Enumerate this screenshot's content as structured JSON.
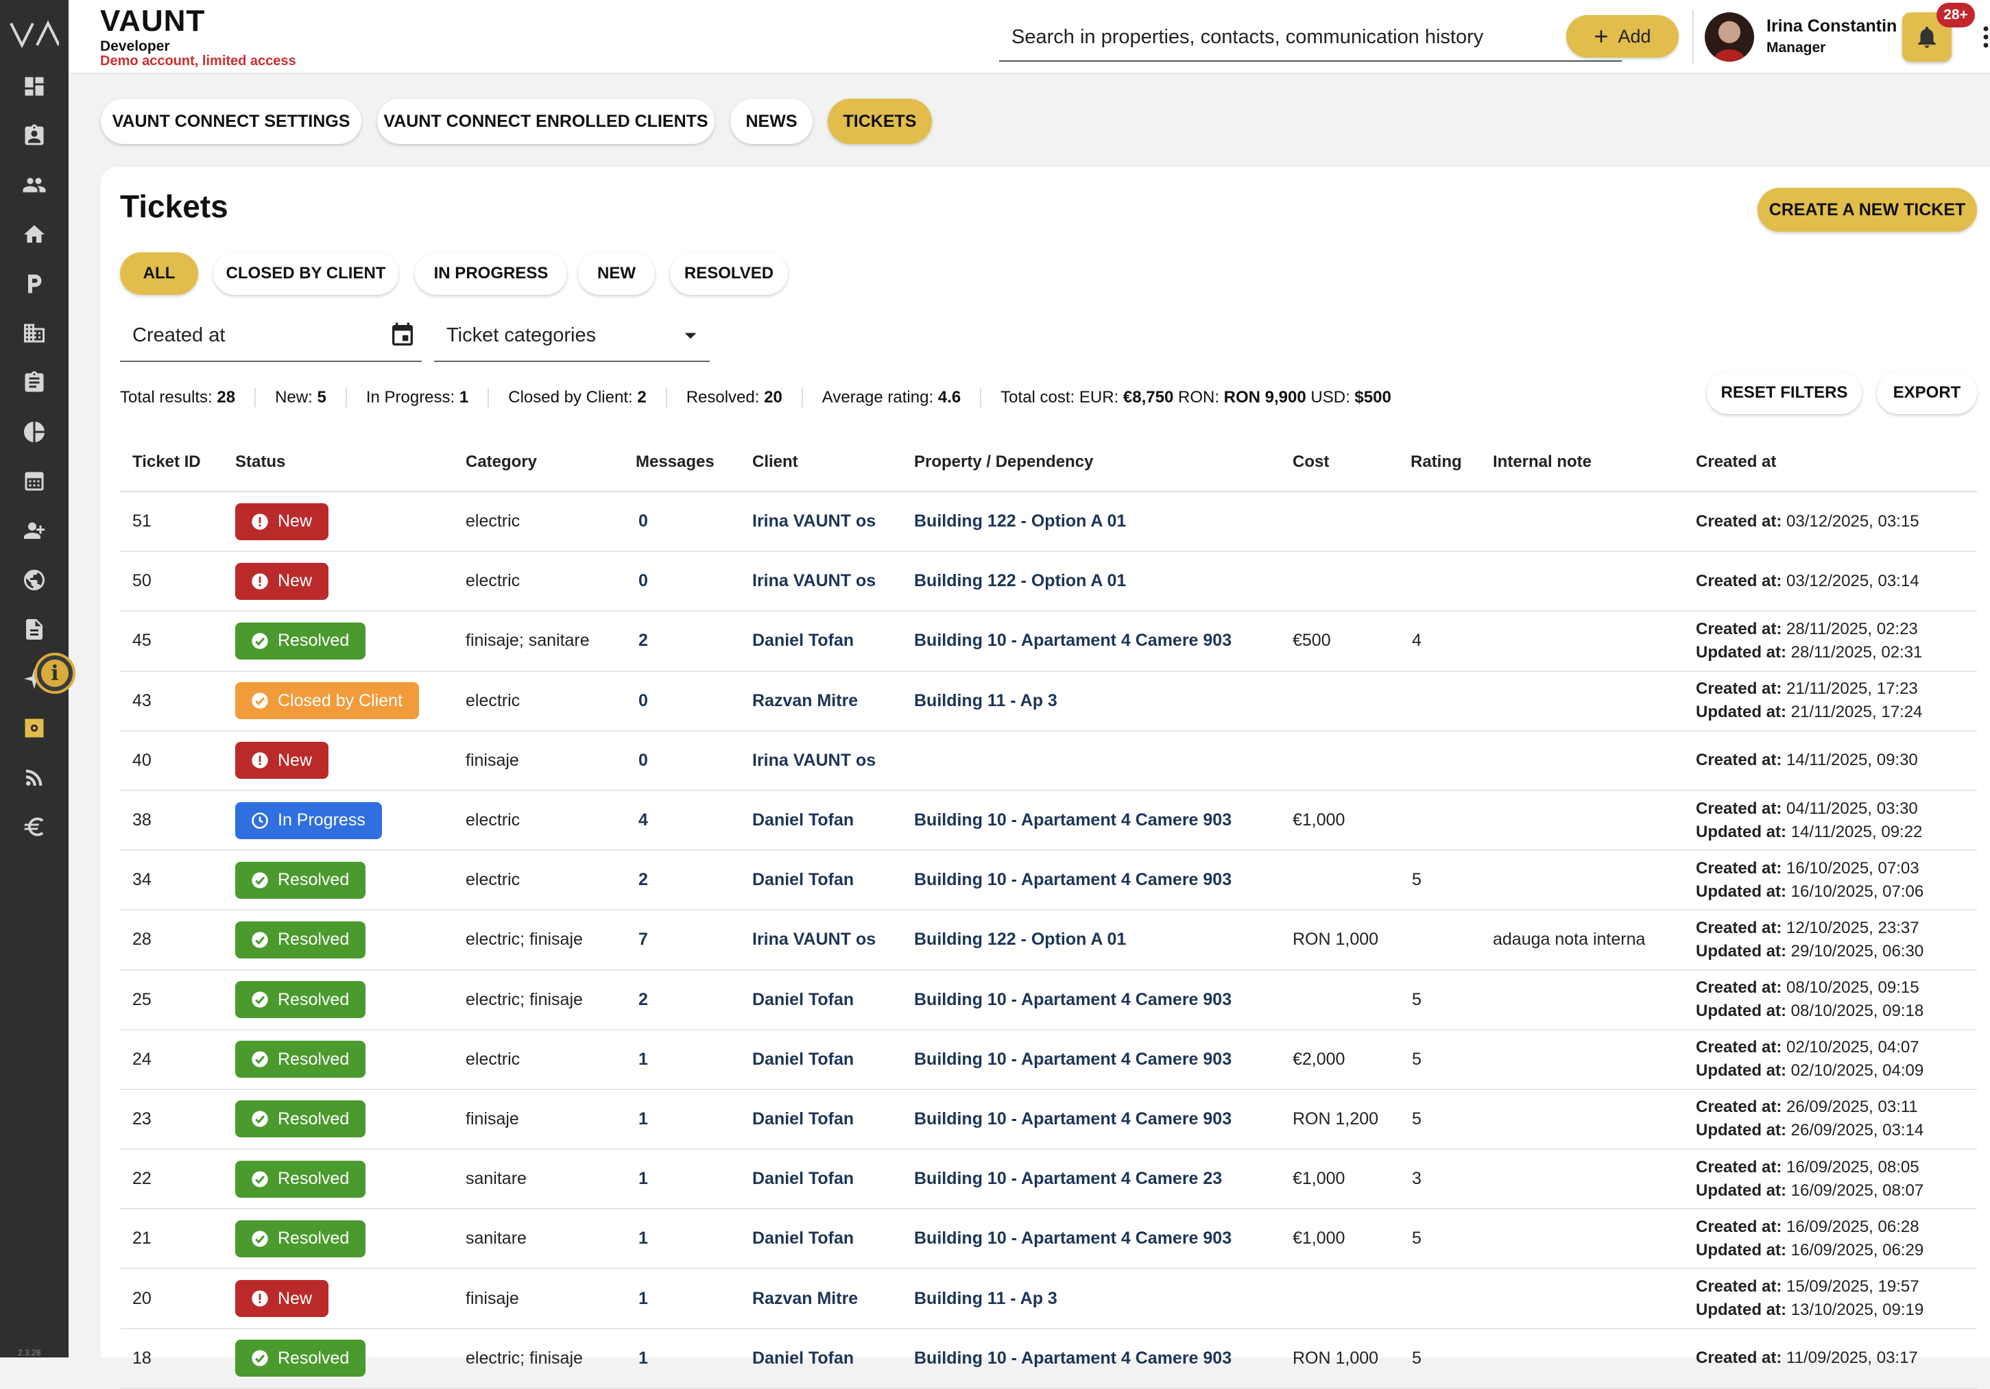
{
  "sidebar": {
    "logo": "VA",
    "items": [
      "dashboard-icon",
      "contacts-icon",
      "people-icon",
      "home-icon",
      "parking-icon",
      "building-icon",
      "clipboard-icon",
      "pie-chart-icon",
      "calculator-icon",
      "person-add-icon",
      "globe-icon",
      "document-icon",
      "sparkle-icon",
      "settings-icon",
      "feed-icon",
      "euro-icon"
    ],
    "info_badge": "i",
    "version": "2.3.28"
  },
  "header": {
    "brand": "VAUNT",
    "role_label": "Developer",
    "demo_notice": "Demo account, limited access",
    "search_placeholder": "Search in properties, contacts, communication history",
    "add_label": "Add",
    "user_name": "Irina Constantin",
    "user_role": "Manager",
    "notifications_count": "28+"
  },
  "tabs": [
    "VAUNT CONNECT SETTINGS",
    "VAUNT CONNECT ENROLLED CLIENTS",
    "NEWS",
    "TICKETS"
  ],
  "active_tab": "TICKETS",
  "page": {
    "title": "Tickets",
    "create_button": "CREATE A NEW TICKET",
    "filter_chips": [
      "ALL",
      "CLOSED BY CLIENT",
      "IN PROGRESS",
      "NEW",
      "RESOLVED"
    ],
    "active_chip": "ALL",
    "created_at_label": "Created at",
    "categories_label": "Ticket categories",
    "reset_button": "RESET FILTERS",
    "export_button": "EXPORT"
  },
  "stats": {
    "total_label": "Total results:",
    "total": "28",
    "new_label": "New:",
    "new": "5",
    "progress_label": "In Progress:",
    "progress": "1",
    "closed_label": "Closed by Client:",
    "closed": "2",
    "resolved_label": "Resolved:",
    "resolved": "20",
    "rating_label": "Average rating:",
    "rating": "4.6",
    "cost_label": "Total cost: EUR:",
    "cost_eur": "€8,750",
    "ron_label": "RON:",
    "cost_ron": "RON 9,900",
    "usd_label": "USD:",
    "cost_usd": "$500"
  },
  "columns": [
    "Ticket ID",
    "Status",
    "Category",
    "Messages",
    "Client",
    "Property / Dependency",
    "Cost",
    "Rating",
    "Internal note",
    "Created at"
  ],
  "date_labels": {
    "created": "Created at:",
    "updated": "Updated at:"
  },
  "status_colors": {
    "New": "#bb2a2a",
    "Resolved": "#4a9a2d",
    "Closed by Client": "#f29b3a",
    "In Progress": "#2f6fe0"
  },
  "tickets": [
    {
      "id": "51",
      "status": "New",
      "category": "electric",
      "messages": "0",
      "client": "Irina VAUNT os",
      "property": "Building 122 - Option A 01",
      "cost": "",
      "rating": "",
      "note": "",
      "created": "03/12/2025, 03:15",
      "updated": ""
    },
    {
      "id": "50",
      "status": "New",
      "category": "electric",
      "messages": "0",
      "client": "Irina VAUNT os",
      "property": "Building 122 - Option A 01",
      "cost": "",
      "rating": "",
      "note": "",
      "created": "03/12/2025, 03:14",
      "updated": ""
    },
    {
      "id": "45",
      "status": "Resolved",
      "category": "finisaje; sanitare",
      "messages": "2",
      "client": "Daniel Tofan",
      "property": "Building 10 - Apartament 4 Camere 903",
      "cost": "€500",
      "rating": "4",
      "note": "",
      "created": "28/11/2025, 02:23",
      "updated": "28/11/2025, 02:31"
    },
    {
      "id": "43",
      "status": "Closed by Client",
      "category": "electric",
      "messages": "0",
      "client": "Razvan Mitre",
      "property": "Building 11 - Ap 3",
      "cost": "",
      "rating": "",
      "note": "",
      "created": "21/11/2025, 17:23",
      "updated": "21/11/2025, 17:24"
    },
    {
      "id": "40",
      "status": "New",
      "category": "finisaje",
      "messages": "0",
      "client": "Irina VAUNT os",
      "property": "",
      "cost": "",
      "rating": "",
      "note": "",
      "created": "14/11/2025, 09:30",
      "updated": ""
    },
    {
      "id": "38",
      "status": "In Progress",
      "category": "electric",
      "messages": "4",
      "client": "Daniel Tofan",
      "property": "Building 10 - Apartament 4 Camere 903",
      "cost": "€1,000",
      "rating": "",
      "note": "",
      "created": "04/11/2025, 03:30",
      "updated": "14/11/2025, 09:22"
    },
    {
      "id": "34",
      "status": "Resolved",
      "category": "electric",
      "messages": "2",
      "client": "Daniel Tofan",
      "property": "Building 10 - Apartament 4 Camere 903",
      "cost": "",
      "rating": "5",
      "note": "",
      "created": "16/10/2025, 07:03",
      "updated": "16/10/2025, 07:06"
    },
    {
      "id": "28",
      "status": "Resolved",
      "category": "electric; finisaje",
      "messages": "7",
      "client": "Irina VAUNT os",
      "property": "Building 122 - Option A 01",
      "cost": "RON 1,000",
      "rating": "",
      "note": "adauga nota interna",
      "created": "12/10/2025, 23:37",
      "updated": "29/10/2025, 06:30"
    },
    {
      "id": "25",
      "status": "Resolved",
      "category": "electric; finisaje",
      "messages": "2",
      "client": "Daniel Tofan",
      "property": "Building 10 - Apartament 4 Camere 903",
      "cost": "",
      "rating": "5",
      "note": "",
      "created": "08/10/2025, 09:15",
      "updated": "08/10/2025, 09:18"
    },
    {
      "id": "24",
      "status": "Resolved",
      "category": "electric",
      "messages": "1",
      "client": "Daniel Tofan",
      "property": "Building 10 - Apartament 4 Camere 903",
      "cost": "€2,000",
      "rating": "5",
      "note": "",
      "created": "02/10/2025, 04:07",
      "updated": "02/10/2025, 04:09"
    },
    {
      "id": "23",
      "status": "Resolved",
      "category": "finisaje",
      "messages": "1",
      "client": "Daniel Tofan",
      "property": "Building 10 - Apartament 4 Camere 903",
      "cost": "RON 1,200",
      "rating": "5",
      "note": "",
      "created": "26/09/2025, 03:11",
      "updated": "26/09/2025, 03:14"
    },
    {
      "id": "22",
      "status": "Resolved",
      "category": "sanitare",
      "messages": "1",
      "client": "Daniel Tofan",
      "property": "Building 10 - Apartament 4 Camere 23",
      "cost": "€1,000",
      "rating": "3",
      "note": "",
      "created": "16/09/2025, 08:05",
      "updated": "16/09/2025, 08:07"
    },
    {
      "id": "21",
      "status": "Resolved",
      "category": "sanitare",
      "messages": "1",
      "client": "Daniel Tofan",
      "property": "Building 10 - Apartament 4 Camere 903",
      "cost": "€1,000",
      "rating": "5",
      "note": "",
      "created": "16/09/2025, 06:28",
      "updated": "16/09/2025, 06:29"
    },
    {
      "id": "20",
      "status": "New",
      "category": "finisaje",
      "messages": "1",
      "client": "Razvan Mitre",
      "property": "Building 11 - Ap 3",
      "cost": "",
      "rating": "",
      "note": "",
      "created": "15/09/2025, 19:57",
      "updated": "13/10/2025, 09:19"
    },
    {
      "id": "18",
      "status": "Resolved",
      "category": "electric; finisaje",
      "messages": "1",
      "client": "Daniel Tofan",
      "property": "Building 10 - Apartament 4 Camere 903",
      "cost": "RON 1,000",
      "rating": "5",
      "note": "",
      "created": "11/09/2025, 03:17",
      "updated": ""
    }
  ]
}
